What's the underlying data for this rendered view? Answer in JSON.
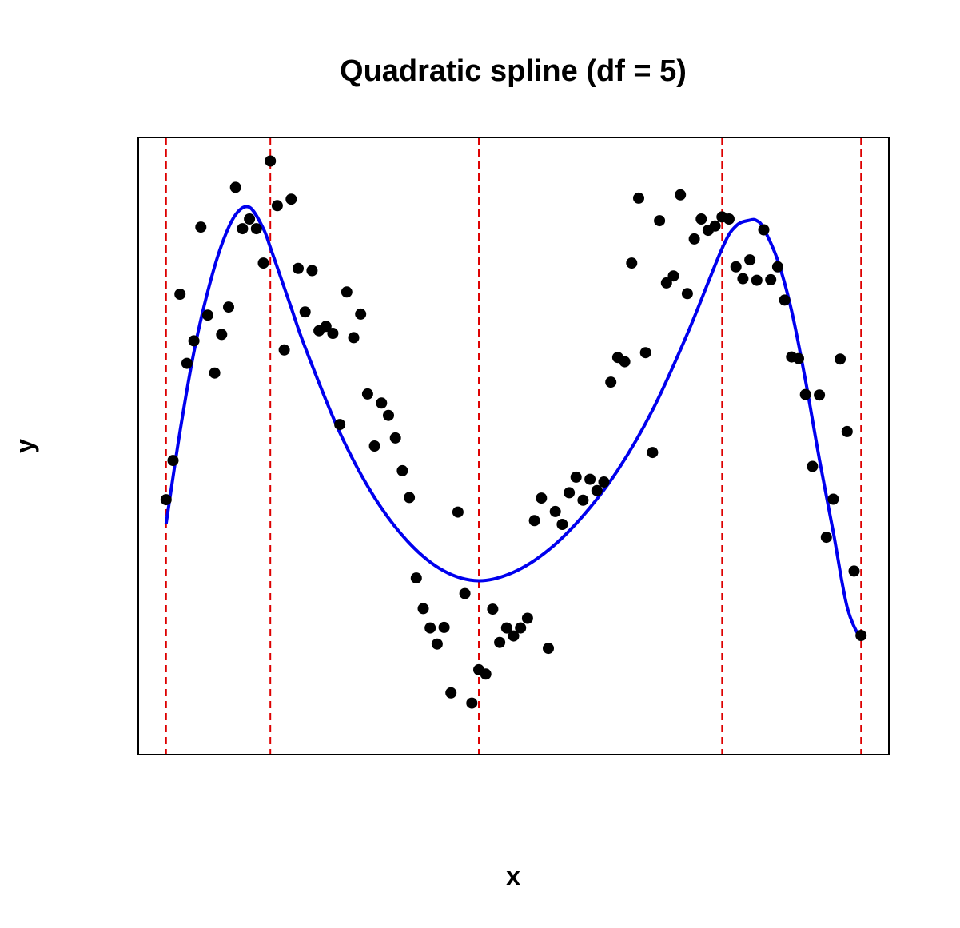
{
  "chart_data": {
    "type": "scatter",
    "title": "Quadratic spline (df = 5)",
    "xlabel": "x",
    "ylabel": "y",
    "xlim": [
      -0.04,
      1.04
    ],
    "ylim": [
      -0.08,
      1.07
    ],
    "axis_ticks": "none",
    "grid": false,
    "legend": "none",
    "points": {
      "color": "#000000",
      "x": [
        0.0,
        0.01,
        0.02,
        0.03,
        0.04,
        0.05,
        0.06,
        0.07,
        0.08,
        0.09,
        0.1,
        0.11,
        0.12,
        0.13,
        0.14,
        0.15,
        0.16,
        0.17,
        0.18,
        0.19,
        0.2,
        0.21,
        0.22,
        0.23,
        0.24,
        0.25,
        0.26,
        0.27,
        0.28,
        0.29,
        0.3,
        0.31,
        0.32,
        0.33,
        0.34,
        0.35,
        0.36,
        0.37,
        0.38,
        0.39,
        0.4,
        0.41,
        0.42,
        0.43,
        0.44,
        0.45,
        0.46,
        0.47,
        0.48,
        0.49,
        0.5,
        0.51,
        0.52,
        0.53,
        0.54,
        0.55,
        0.56,
        0.57,
        0.58,
        0.59,
        0.6,
        0.61,
        0.62,
        0.63,
        0.64,
        0.65,
        0.66,
        0.67,
        0.68,
        0.69,
        0.7,
        0.71,
        0.72,
        0.73,
        0.74,
        0.75,
        0.76,
        0.77,
        0.78,
        0.79,
        0.8,
        0.81,
        0.82,
        0.83,
        0.84,
        0.85,
        0.86,
        0.87,
        0.88,
        0.89,
        0.9,
        0.91,
        0.92,
        0.93,
        0.94,
        0.95,
        0.96,
        0.97,
        0.98,
        0.99,
        1.0
      ],
      "y": [
        0.395,
        0.468,
        0.778,
        0.649,
        0.691,
        0.903,
        0.739,
        0.631,
        0.703,
        0.754,
        0.977,
        0.9,
        0.918,
        0.9,
        0.836,
        1.026,
        0.943,
        0.674,
        0.955,
        0.826,
        0.745,
        0.822,
        0.71,
        0.718,
        0.705,
        0.535,
        0.782,
        0.697,
        0.741,
        0.592,
        0.495,
        0.575,
        0.552,
        0.51,
        0.449,
        0.399,
        0.249,
        0.192,
        0.156,
        0.126,
        0.157,
        0.035,
        0.372,
        0.22,
        0.016,
        0.078,
        0.07,
        0.191,
        0.129,
        0.156,
        0.141,
        0.156,
        0.174,
        0.356,
        0.398,
        0.118,
        0.373,
        0.349,
        0.408,
        0.437,
        0.394,
        0.433,
        0.412,
        0.428,
        0.614,
        0.66,
        0.652,
        0.836,
        0.957,
        0.669,
        0.483,
        0.915,
        0.799,
        0.812,
        0.963,
        0.779,
        0.881,
        0.918,
        0.897,
        0.905,
        0.922,
        0.918,
        0.829,
        0.807,
        0.842,
        0.804,
        0.898,
        0.805,
        0.829,
        0.767,
        0.661,
        0.658,
        0.591,
        0.457,
        0.59,
        0.325,
        0.396,
        0.657,
        0.522,
        0.262,
        0.142
      ]
    },
    "fitted_curve": {
      "color": "#0000ee",
      "x": [
        0.0,
        0.02,
        0.04,
        0.06,
        0.08,
        0.1,
        0.12,
        0.14,
        0.15,
        0.16,
        0.18,
        0.2,
        0.25,
        0.3,
        0.35,
        0.4,
        0.45,
        0.5,
        0.55,
        0.6,
        0.65,
        0.7,
        0.75,
        0.8,
        0.82,
        0.84,
        0.85,
        0.86,
        0.88,
        0.9,
        0.92,
        0.94,
        0.96,
        0.98,
        1.0
      ],
      "y": [
        0.35,
        0.522,
        0.67,
        0.783,
        0.87,
        0.926,
        0.94,
        0.9,
        0.865,
        0.828,
        0.753,
        0.679,
        0.52,
        0.399,
        0.314,
        0.262,
        0.244,
        0.26,
        0.301,
        0.365,
        0.45,
        0.562,
        0.704,
        0.863,
        0.905,
        0.916,
        0.915,
        0.9,
        0.841,
        0.747,
        0.617,
        0.47,
        0.335,
        0.195,
        0.133
      ]
    },
    "knots": {
      "color": "#dd0000",
      "style": "dashed",
      "x": [
        0.0,
        0.15,
        0.45,
        0.8,
        1.0
      ]
    }
  }
}
